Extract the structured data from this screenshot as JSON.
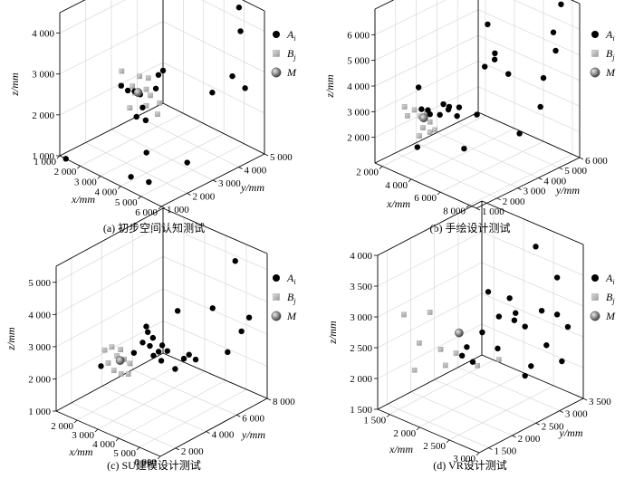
{
  "legend": {
    "items": [
      {
        "key": "A",
        "sub": "i",
        "marker": "black-dot"
      },
      {
        "key": "B",
        "sub": "j",
        "marker": "gray-cube"
      },
      {
        "key": "M",
        "sub": "",
        "marker": "gray-sphere"
      }
    ]
  },
  "colors": {
    "A": "#000000",
    "B": "#b4b4b4",
    "M": "#777777",
    "grid": "#d8d8d8",
    "axis": "#000000"
  },
  "chart_data": [
    {
      "type": "scatter",
      "caption": "(a) 初步空间认知测试",
      "xlabel": "x/mm",
      "ylabel": "y/mm",
      "zlabel": "z/mm",
      "xlim": [
        1000,
        6000
      ],
      "ylim": [
        1000,
        5000
      ],
      "zlim": [
        1000,
        4500
      ],
      "x_ticks": [
        "1 000",
        "2 000",
        "3 000",
        "4 000",
        "5 000",
        "6 000"
      ],
      "y_ticks": [
        "1 000",
        "2 000",
        "3 000",
        "4 000",
        "5 000"
      ],
      "z_ticks": [
        "1 000",
        "2 000",
        "3 000",
        "4 000"
      ],
      "A": [
        [
          1300,
          1000,
          1000
        ],
        [
          5000,
          4800,
          4400
        ],
        [
          5200,
          4700,
          3900
        ],
        [
          3800,
          2800,
          3200
        ],
        [
          3700,
          2700,
          3100
        ],
        [
          3700,
          2600,
          2800
        ],
        [
          2500,
          2200,
          2700
        ],
        [
          2700,
          2300,
          2600
        ],
        [
          2900,
          2400,
          2600
        ],
        [
          2800,
          2700,
          2400
        ],
        [
          3000,
          2400,
          2000
        ],
        [
          3300,
          2400,
          2300
        ],
        [
          3200,
          2600,
          1900
        ],
        [
          4700,
          4000,
          2500
        ],
        [
          5300,
          4800,
          2500
        ],
        [
          4800,
          4700,
          2700
        ],
        [
          4000,
          2000,
          1500
        ],
        [
          5500,
          2400,
          1500
        ],
        [
          4000,
          1400,
          1100
        ],
        [
          4500,
          1700,
          1000
        ]
      ],
      "B": [
        [
          2400,
          2300,
          3000
        ],
        [
          2500,
          2200,
          2700
        ],
        [
          2800,
          2400,
          2700
        ],
        [
          2900,
          2600,
          2900
        ],
        [
          3200,
          2700,
          2900
        ],
        [
          3100,
          2700,
          2600
        ],
        [
          2800,
          2500,
          2500
        ],
        [
          2800,
          2300,
          2200
        ],
        [
          3100,
          2700,
          2200
        ],
        [
          3300,
          2700,
          2500
        ],
        [
          3500,
          2900,
          2300
        ],
        [
          3400,
          2900,
          2000
        ]
      ],
      "M": [
        [
          2950,
          2500,
          2550
        ]
      ]
    },
    {
      "type": "scatter",
      "caption": "(b) 手绘设计测试",
      "xlabel": "x/mm",
      "ylabel": "y/mm",
      "zlabel": "z/mm",
      "xlim": [
        1500,
        8500
      ],
      "ylim": [
        1000,
        6000
      ],
      "zlim": [
        1000,
        7000
      ],
      "x_ticks": [
        "2 000",
        "4 000",
        "6 000",
        "8 000"
      ],
      "y_ticks": [
        "1 000",
        "2 000",
        "3 000",
        "4 000",
        "5 000",
        "6 000"
      ],
      "z_ticks": [
        "2 000",
        "3 000",
        "4 000",
        "5 000",
        "6 000"
      ],
      "A": [
        [
          7500,
          5800,
          6800
        ],
        [
          5000,
          4000,
          6100
        ],
        [
          7400,
          5500,
          5800
        ],
        [
          7700,
          5400,
          5200
        ],
        [
          5500,
          4000,
          5100
        ],
        [
          5200,
          4200,
          4700
        ],
        [
          6000,
          4300,
          4300
        ],
        [
          7000,
          5300,
          4000
        ],
        [
          2800,
          2200,
          3800
        ],
        [
          4800,
          4000,
          4400
        ],
        [
          3000,
          2200,
          3000
        ],
        [
          3300,
          2300,
          3000
        ],
        [
          3800,
          2700,
          3200
        ],
        [
          4200,
          2700,
          3200
        ],
        [
          4600,
          2900,
          3200
        ],
        [
          4000,
          2800,
          3000
        ],
        [
          3700,
          2600,
          2800
        ],
        [
          3300,
          2400,
          2800
        ],
        [
          4600,
          2800,
          2900
        ],
        [
          5400,
          3200,
          3000
        ],
        [
          7500,
          4800,
          3200
        ],
        [
          3000,
          2000,
          1600
        ],
        [
          4800,
          3000,
          1600
        ],
        [
          7200,
          4000,
          2400
        ]
      ],
      "B": [
        [
          2400,
          1800,
          3100
        ],
        [
          2600,
          1800,
          2800
        ],
        [
          2800,
          2000,
          3000
        ],
        [
          2900,
          2200,
          2700
        ],
        [
          3200,
          2300,
          2900
        ],
        [
          3300,
          2400,
          2500
        ],
        [
          3100,
          2200,
          2300
        ],
        [
          3000,
          2100,
          2000
        ],
        [
          3300,
          2400,
          2100
        ],
        [
          3500,
          2500,
          2200
        ]
      ],
      "M": [
        [
          3150,
          2200,
          2700
        ]
      ]
    },
    {
      "type": "scatter",
      "caption": "(c) SU建模设计测试",
      "xlabel": "x/mm",
      "ylabel": "y/mm",
      "zlabel": "z/mm",
      "xlim": [
        1000,
        6000
      ],
      "ylim": [
        1000,
        8000
      ],
      "zlim": [
        1000,
        5500
      ],
      "x_ticks": [
        "2 000",
        "3 000",
        "4 000",
        "5 000",
        "6 000"
      ],
      "y_ticks": [
        "2 000",
        "4 000",
        "6 000",
        "8 000"
      ],
      "z_ticks": [
        "1 000",
        "2 000",
        "3 000",
        "4 000",
        "5 000"
      ],
      "A": [
        [
          5200,
          7000,
          5300
        ],
        [
          3900,
          5000,
          3900
        ],
        [
          4700,
          6200,
          3900
        ],
        [
          5500,
          7500,
          3500
        ],
        [
          3200,
          3900,
          3500
        ],
        [
          3200,
          4000,
          3300
        ],
        [
          3300,
          4200,
          3100
        ],
        [
          3100,
          3800,
          3000
        ],
        [
          3300,
          4000,
          2900
        ],
        [
          3600,
          4400,
          2900
        ],
        [
          3500,
          4300,
          2700
        ],
        [
          3700,
          4600,
          2700
        ],
        [
          3400,
          4100,
          2600
        ],
        [
          2900,
          3500,
          2700
        ],
        [
          3700,
          4200,
          2500
        ],
        [
          2600,
          3100,
          2500
        ],
        [
          2200,
          2300,
          2400
        ],
        [
          4200,
          5000,
          2500
        ],
        [
          4400,
          5500,
          2400
        ],
        [
          4300,
          5200,
          2600
        ],
        [
          5200,
          6500,
          2600
        ],
        [
          4000,
          4700,
          2200
        ],
        [
          5500,
          7000,
          3200
        ]
      ],
      "B": [
        [
          2300,
          2400,
          2900
        ],
        [
          2500,
          2600,
          3000
        ],
        [
          2700,
          2900,
          2900
        ],
        [
          2600,
          2800,
          2700
        ],
        [
          2800,
          3000,
          2600
        ],
        [
          3000,
          3100,
          2500
        ],
        [
          2400,
          2500,
          2500
        ],
        [
          2600,
          2600,
          2300
        ],
        [
          2800,
          2800,
          2200
        ],
        [
          3000,
          3000,
          2200
        ]
      ],
      "M": [
        [
          2750,
          2800,
          2600
        ]
      ]
    },
    {
      "type": "scatter",
      "caption": "(d) VR设计测试",
      "xlabel": "x/mm",
      "ylabel": "y/mm",
      "zlabel": "z/mm",
      "xlim": [
        1300,
        3000
      ],
      "ylim": [
        1300,
        3500
      ],
      "zlim": [
        1500,
        4000
      ],
      "x_ticks": [
        "1 500",
        "2 000",
        "2 500",
        "3 000"
      ],
      "y_ticks": [
        "1 500",
        "2 000",
        "2 500",
        "3 000",
        "3 500"
      ],
      "z_ticks": [
        "1 500",
        "2 000",
        "2 500",
        "3 000",
        "3 500",
        "4 000"
      ],
      "A": [
        [
          2600,
          3000,
          4000
        ],
        [
          2800,
          3200,
          3500
        ],
        [
          2200,
          2500,
          3300
        ],
        [
          2400,
          2700,
          3200
        ],
        [
          2500,
          2700,
          3000
        ],
        [
          2700,
          3000,
          3000
        ],
        [
          2800,
          3200,
          2900
        ],
        [
          2300,
          2600,
          2900
        ],
        [
          2400,
          2800,
          2800
        ],
        [
          2500,
          2900,
          2700
        ],
        [
          2100,
          2500,
          2600
        ],
        [
          2000,
          2300,
          2400
        ],
        [
          2200,
          2700,
          2300
        ],
        [
          2700,
          3100,
          2400
        ],
        [
          2600,
          2900,
          2100
        ],
        [
          2800,
          3300,
          2100
        ],
        [
          2100,
          2300,
          2200
        ],
        [
          2900,
          3300,
          2700
        ],
        [
          2500,
          2900,
          1900
        ],
        [
          2000,
          2200,
          2300
        ]
      ],
      "B": [
        [
          1500,
          1600,
          3000
        ],
        [
          1700,
          1900,
          3000
        ],
        [
          1600,
          1800,
          2500
        ],
        [
          1800,
          2000,
          2400
        ],
        [
          1600,
          1700,
          2100
        ],
        [
          1900,
          2200,
          2300
        ],
        [
          2100,
          2400,
          2100
        ],
        [
          1800,
          2100,
          2100
        ],
        [
          2300,
          2600,
          2200
        ]
      ],
      "M": [
        [
          1950,
          2200,
          2650
        ]
      ]
    }
  ]
}
